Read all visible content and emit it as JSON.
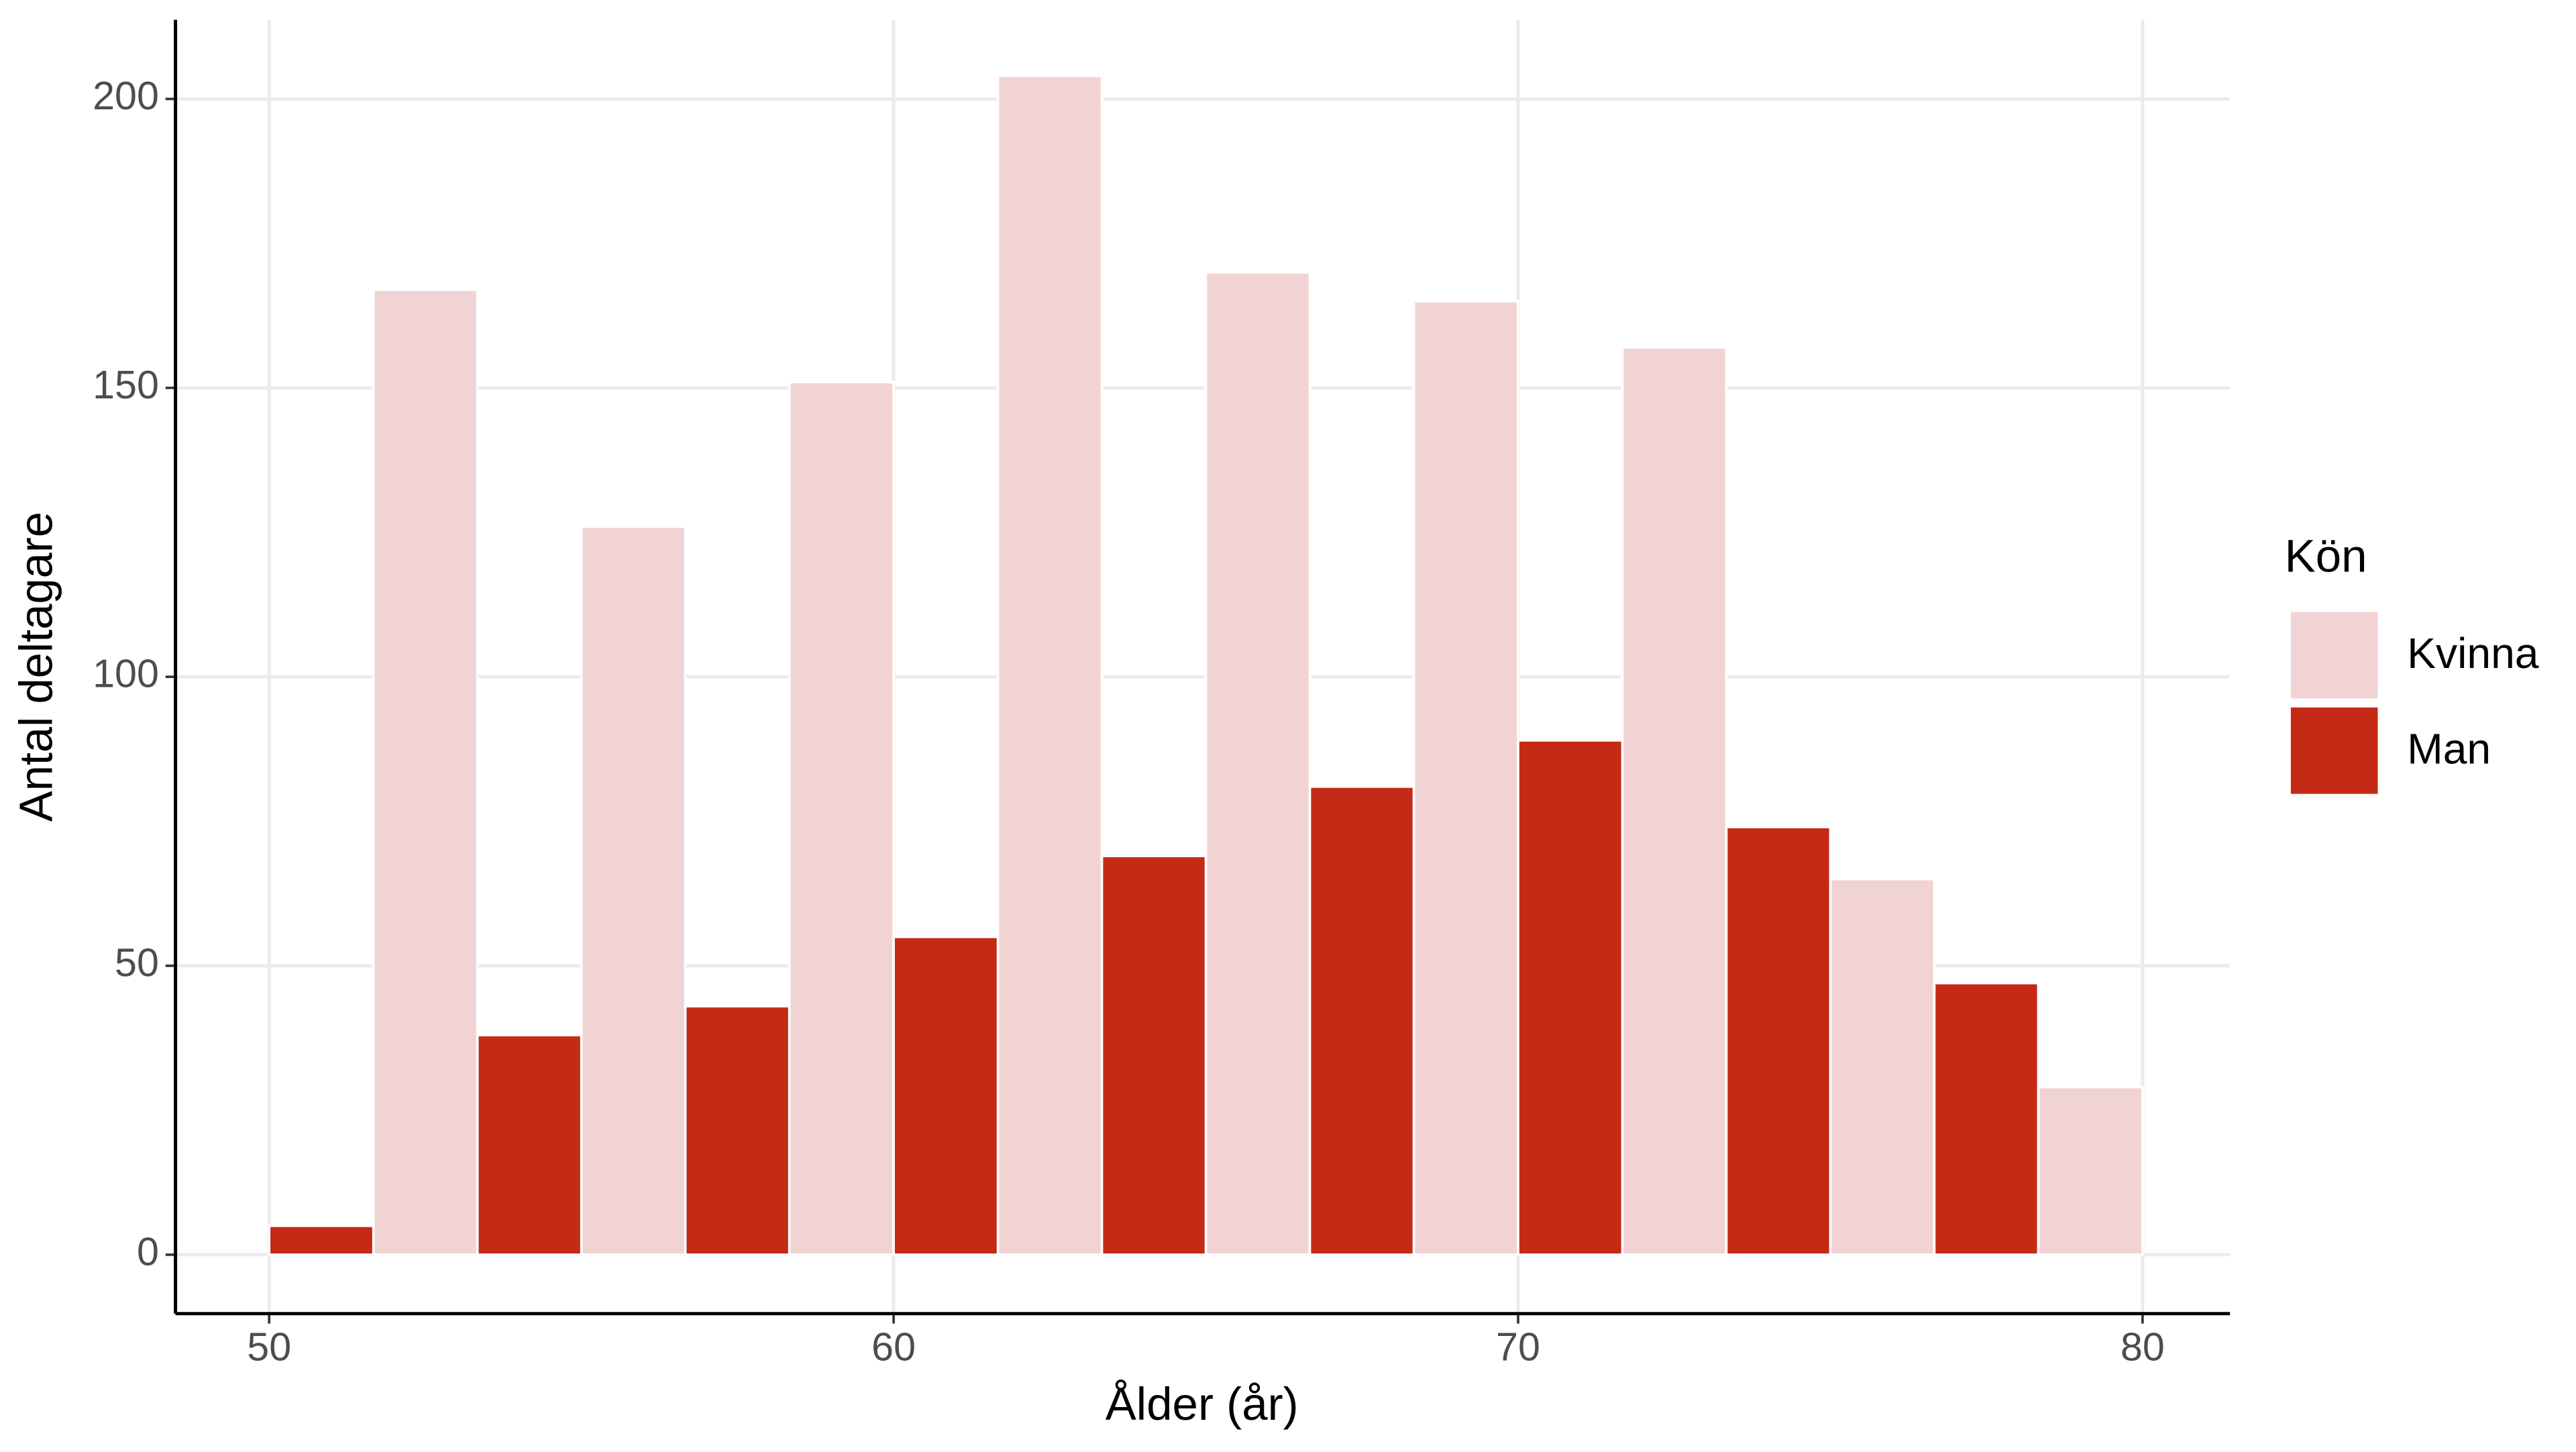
{
  "chart_data": {
    "type": "histogram",
    "x_label": "Ålder (år)",
    "y_label": "Antal deltagare",
    "bins": [
      48.33,
      51.67,
      55,
      58.33,
      61.67,
      65,
      68.33,
      71.67,
      75,
      78.33,
      81.67
    ],
    "series": [
      {
        "name": "Kvinna",
        "color": "#f2d3d3",
        "values": [
          0,
          167,
          126,
          151,
          204,
          170,
          165,
          157,
          65,
          29
        ]
      },
      {
        "name": "Man",
        "color": "#c42a16",
        "values": [
          5,
          38,
          43,
          55,
          69,
          81,
          89,
          74,
          47,
          0
        ]
      }
    ],
    "legend_title": "Kön",
    "legend_position": "right",
    "xlim": [
      48.5,
      81.4
    ],
    "ylim": [
      -10.2,
      213.7
    ],
    "xticks": [
      50,
      60,
      70,
      80
    ],
    "yticks": [
      0,
      50,
      100,
      150,
      200
    ],
    "grid": true
  }
}
